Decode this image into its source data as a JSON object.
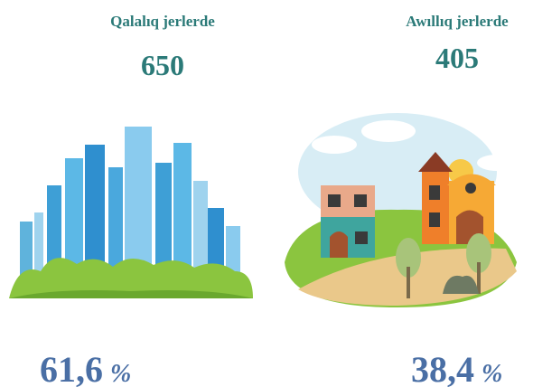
{
  "items": [
    {
      "title": "Qalalıq jerlerde",
      "count": "650",
      "percent": "61,6",
      "unit": "%"
    },
    {
      "title": "Awıllıq jerlerde",
      "count": "405",
      "percent": "38,4",
      "unit": "%"
    }
  ]
}
